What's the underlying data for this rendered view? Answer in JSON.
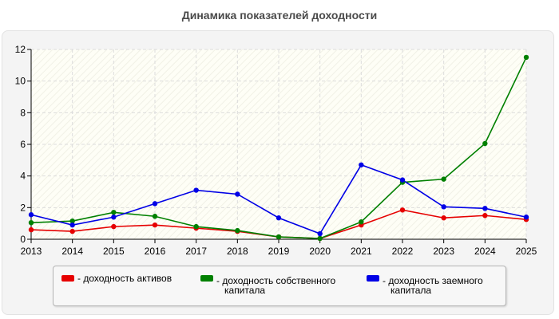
{
  "chart_data": {
    "type": "line",
    "title": "Динамика показателей доходности",
    "x": [
      "2013",
      "2014",
      "2015",
      "2016",
      "2017",
      "2018",
      "2019",
      "2020",
      "2021",
      "2022",
      "2023",
      "2024",
      "2025"
    ],
    "ylim": [
      0,
      12
    ],
    "yticks": [
      "0",
      "2",
      "4",
      "6",
      "8",
      "10",
      "12"
    ],
    "grid": true,
    "legend_position": "bottom",
    "series": [
      {
        "name": "- доходность активов",
        "name_lines": [
          "- доходность активов"
        ],
        "color": "#e60000",
        "values": [
          0.6,
          0.5,
          0.8,
          0.9,
          0.7,
          0.5,
          0.15,
          0.05,
          0.9,
          1.85,
          1.35,
          1.5,
          1.25
        ]
      },
      {
        "name": "- доходность собственного капитала",
        "name_lines": [
          "- доходность собственного",
          "капитала"
        ],
        "color": "#008000",
        "values": [
          1.05,
          1.15,
          1.7,
          1.45,
          0.8,
          0.55,
          0.15,
          0.05,
          1.1,
          3.6,
          3.8,
          6.05,
          11.5
        ]
      },
      {
        "name": "- доходность заемного капитала",
        "name_lines": [
          "- доходность заемного",
          "капитала"
        ],
        "color": "#0000e6",
        "values": [
          1.55,
          0.9,
          1.4,
          2.25,
          3.1,
          2.85,
          1.35,
          0.35,
          4.7,
          3.75,
          2.05,
          1.95,
          1.4
        ]
      }
    ]
  }
}
